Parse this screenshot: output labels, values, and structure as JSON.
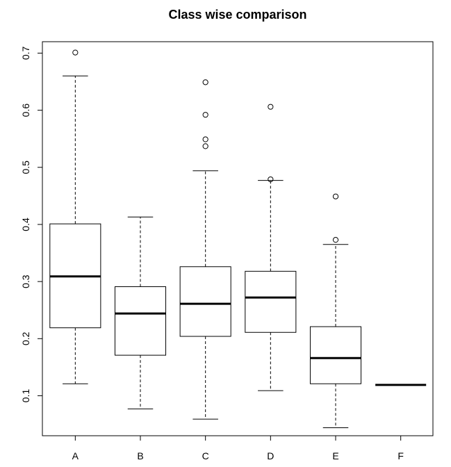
{
  "chart_data": {
    "type": "box",
    "title": "Class wise comparison",
    "xlabel": "",
    "ylabel": "",
    "categories": [
      "A",
      "B",
      "C",
      "D",
      "E",
      "F"
    ],
    "ylim": [
      0.03,
      0.72
    ],
    "yticks": [
      0.1,
      0.2,
      0.3,
      0.4,
      0.5,
      0.6,
      0.7
    ],
    "ytick_labels": [
      "0.1",
      "0.2",
      "0.3",
      "0.4",
      "0.5",
      "0.6",
      "0.7"
    ],
    "boxes": [
      {
        "category": "A",
        "whisker_low": 0.121,
        "q1": 0.219,
        "median": 0.309,
        "q3": 0.401,
        "whisker_high": 0.66,
        "outliers": [
          0.701
        ]
      },
      {
        "category": "B",
        "whisker_low": 0.077,
        "q1": 0.171,
        "median": 0.244,
        "q3": 0.291,
        "whisker_high": 0.413,
        "outliers": []
      },
      {
        "category": "C",
        "whisker_low": 0.059,
        "q1": 0.204,
        "median": 0.261,
        "q3": 0.326,
        "whisker_high": 0.494,
        "outliers": [
          0.537,
          0.549,
          0.592,
          0.649
        ]
      },
      {
        "category": "D",
        "whisker_low": 0.109,
        "q1": 0.211,
        "median": 0.272,
        "q3": 0.318,
        "whisker_high": 0.477,
        "outliers": [
          0.479,
          0.606
        ]
      },
      {
        "category": "E",
        "whisker_low": 0.044,
        "q1": 0.121,
        "median": 0.166,
        "q3": 0.221,
        "whisker_high": 0.365,
        "outliers": [
          0.373,
          0.449
        ]
      },
      {
        "category": "F",
        "whisker_low": 0.119,
        "q1": 0.119,
        "median": 0.119,
        "q3": 0.119,
        "whisker_high": 0.119,
        "outliers": []
      }
    ],
    "grid": false,
    "legend": "none",
    "colors": {
      "box_fill": "#ffffff",
      "stroke": "#000000"
    }
  }
}
